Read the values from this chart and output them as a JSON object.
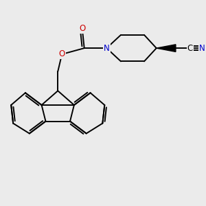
{
  "background_color": "#ebebeb",
  "atom_colors": {
    "C": "#000000",
    "N": "#0000cc",
    "O": "#cc0000"
  },
  "bond_color": "#000000",
  "bond_width": 1.4,
  "figsize": [
    3.0,
    3.0
  ],
  "dpi": 100,
  "xlim": [
    0,
    10
  ],
  "ylim": [
    0,
    10
  ],
  "font_size": 8.5
}
